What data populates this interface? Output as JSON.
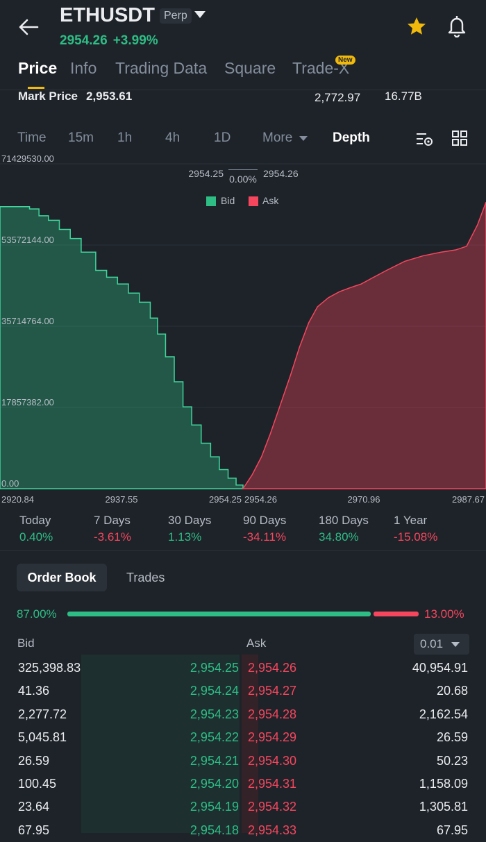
{
  "header": {
    "symbol": "ETHUSDT",
    "contract_type": "Perp",
    "last_price": "2954.26",
    "change_pct": "+3.99%"
  },
  "tabs": [
    {
      "label": "Price",
      "active": true
    },
    {
      "label": "Info",
      "active": false
    },
    {
      "label": "Trading Data",
      "active": false
    },
    {
      "label": "Square",
      "active": false
    },
    {
      "label": "Trade-X",
      "active": false
    }
  ],
  "new_badge": "New",
  "stats": {
    "mark_price_label": "Mark Price",
    "mark_price_value": "2,953.61",
    "stat_1": "2,772.97",
    "stat_2": "16.77B"
  },
  "intervals": [
    {
      "label": "Time",
      "active": false
    },
    {
      "label": "15m",
      "active": false
    },
    {
      "label": "1h",
      "active": false
    },
    {
      "label": "4h",
      "active": false
    },
    {
      "label": "1D",
      "active": false
    },
    {
      "label": "More",
      "active": false
    },
    {
      "label": "Depth",
      "active": true
    }
  ],
  "chart_data": {
    "type": "area",
    "spread_bid": "2954.25",
    "spread_pct": "0.00%",
    "spread_ask": "2954.26",
    "y_ticks": [
      "71429530.00",
      "53572144.00",
      "35714764.00",
      "17857382.00",
      "0.00"
    ],
    "x_ticks": [
      "2920.84",
      "2937.55",
      "2954.25",
      "2954.26",
      "2970.96",
      "2987.67"
    ],
    "ylim": [
      0,
      71429530
    ],
    "grid": true,
    "legend_position": "top-center",
    "series": [
      {
        "name": "Bid",
        "color": "#2ebd85",
        "x": [
          2920.84,
          2923.0,
          2924.9,
          2926.2,
          2927.5,
          2929.0,
          2930.5,
          2932.0,
          2934.0,
          2935.5,
          2937.0,
          2938.5,
          2940.0,
          2941.5,
          2942.5,
          2943.6,
          2944.8,
          2946.0,
          2947.2,
          2948.5,
          2949.8,
          2951.0,
          2952.2,
          2953.3,
          2954.25
        ],
        "y": [
          62000000,
          62000000,
          61500000,
          60000000,
          59000000,
          57000000,
          55000000,
          52000000,
          48000000,
          46500000,
          45000000,
          43000000,
          41000000,
          37500000,
          34000000,
          29000000,
          23500000,
          18000000,
          14000000,
          10000000,
          7000000,
          4200000,
          2300000,
          800000,
          0
        ]
      },
      {
        "name": "Ask",
        "color": "#f6465d",
        "x": [
          2954.26,
          2955.5,
          2956.8,
          2958.0,
          2959.3,
          2960.8,
          2962.0,
          2963.3,
          2964.5,
          2966.0,
          2967.5,
          2969.0,
          2970.5,
          2972.0,
          2974.0,
          2976.5,
          2979.0,
          2981.5,
          2983.5,
          2985.0,
          2986.5,
          2987.67
        ],
        "y": [
          0,
          3000000,
          7000000,
          12000000,
          18000000,
          25000000,
          31000000,
          36500000,
          40000000,
          42000000,
          43300000,
          44200000,
          45000000,
          46300000,
          48000000,
          50000000,
          51200000,
          52000000,
          52500000,
          53300000,
          58000000,
          63000000
        ]
      }
    ]
  },
  "performance": [
    {
      "label": "Today",
      "value": "0.40%",
      "trend": "up"
    },
    {
      "label": "7 Days",
      "value": "-3.61%",
      "trend": "down"
    },
    {
      "label": "30 Days",
      "value": "1.13%",
      "trend": "up"
    },
    {
      "label": "90 Days",
      "value": "-34.11%",
      "trend": "down"
    },
    {
      "label": "180 Days",
      "value": "34.80%",
      "trend": "up"
    },
    {
      "label": "1 Year",
      "value": "-15.08%",
      "trend": "down"
    }
  ],
  "order_book": {
    "tab_order_book": "Order Book",
    "tab_trades": "Trades",
    "bid_ratio": "87.00%",
    "ask_ratio": "13.00%",
    "bid_ratio_value": 0.87,
    "bid_header": "Bid",
    "ask_header": "Ask",
    "precision": "0.01",
    "rows": [
      {
        "bid_qty": "325,398.83",
        "bid_price": "2,954.25",
        "ask_price": "2,954.26",
        "ask_qty": "40,954.91"
      },
      {
        "bid_qty": "41.36",
        "bid_price": "2,954.24",
        "ask_price": "2,954.27",
        "ask_qty": "20.68"
      },
      {
        "bid_qty": "2,277.72",
        "bid_price": "2,954.23",
        "ask_price": "2,954.28",
        "ask_qty": "2,162.54"
      },
      {
        "bid_qty": "5,045.81",
        "bid_price": "2,954.22",
        "ask_price": "2,954.29",
        "ask_qty": "26.59"
      },
      {
        "bid_qty": "26.59",
        "bid_price": "2,954.21",
        "ask_price": "2,954.30",
        "ask_qty": "50.23"
      },
      {
        "bid_qty": "100.45",
        "bid_price": "2,954.20",
        "ask_price": "2,954.31",
        "ask_qty": "1,158.09"
      },
      {
        "bid_qty": "23.64",
        "bid_price": "2,954.19",
        "ask_price": "2,954.32",
        "ask_qty": "1,305.81"
      },
      {
        "bid_qty": "67.95",
        "bid_price": "2,954.18",
        "ask_price": "2,954.33",
        "ask_qty": "67.95"
      }
    ]
  }
}
